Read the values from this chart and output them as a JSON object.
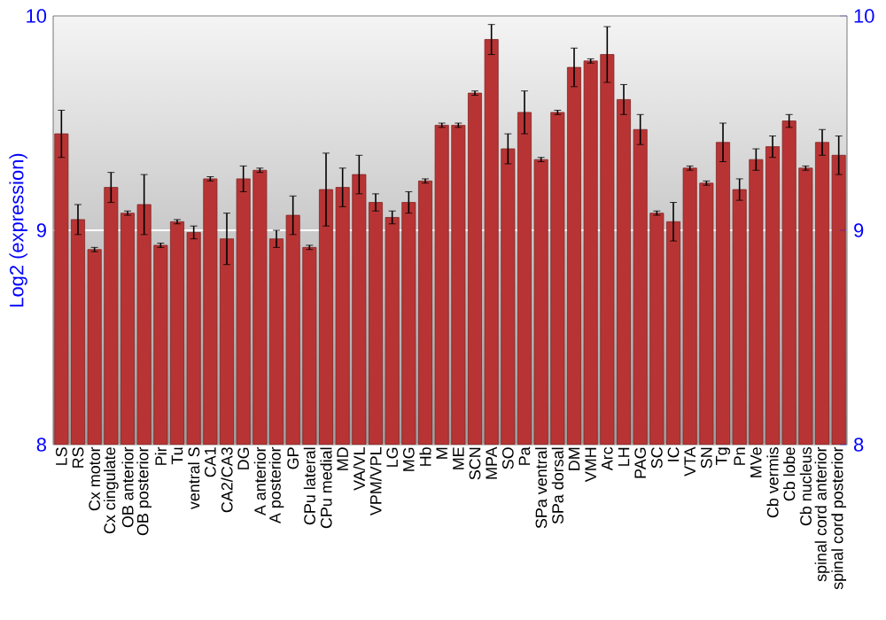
{
  "chart_data": {
    "type": "bar",
    "ylabel": "Log2 (expression)",
    "categories": [
      "LS",
      "RS",
      "Cx motor",
      "Cx cingulate",
      "OB anterior",
      "OB posterior",
      "Pir",
      "Tu",
      "ventral S",
      "CA1",
      "CA2/CA3",
      "DG",
      "A anterior",
      "A posterior",
      "GP",
      "CPu lateral",
      "CPu medial",
      "MD",
      "VA/VL",
      "VPM/VPL",
      "LG",
      "MG",
      "Hb",
      "M",
      "ME",
      "SCN",
      "MPA",
      "SO",
      "Pa",
      "SPa ventral",
      "SPa dorsal",
      "DM",
      "VMH",
      "Arc",
      "LH",
      "PAG",
      "SC",
      "IC",
      "VTA",
      "SN",
      "Tg",
      "Pn",
      "MVe",
      "Cb vermis",
      "Cb lobe",
      "Cb nucleus",
      "spinal cord anterior",
      "spinal cord posterior"
    ],
    "values": [
      9.45,
      9.05,
      8.91,
      9.2,
      9.08,
      9.12,
      8.93,
      9.04,
      8.99,
      9.24,
      8.96,
      9.24,
      9.28,
      8.96,
      9.07,
      8.92,
      9.19,
      9.2,
      9.26,
      9.13,
      9.06,
      9.13,
      9.23,
      9.49,
      9.49,
      9.64,
      9.89,
      9.38,
      9.55,
      9.33,
      9.55,
      9.76,
      9.79,
      9.82,
      9.61,
      9.47,
      9.08,
      9.04,
      9.29,
      9.22,
      9.41,
      9.19,
      9.33,
      9.39,
      9.51,
      9.29,
      9.41,
      9.35
    ],
    "errors": [
      0.11,
      0.07,
      0.01,
      0.07,
      0.01,
      0.14,
      0.01,
      0.01,
      0.03,
      0.01,
      0.12,
      0.06,
      0.01,
      0.04,
      0.09,
      0.01,
      0.17,
      0.09,
      0.09,
      0.04,
      0.03,
      0.05,
      0.01,
      0.01,
      0.01,
      0.01,
      0.07,
      0.07,
      0.1,
      0.01,
      0.01,
      0.09,
      0.01,
      0.13,
      0.07,
      0.07,
      0.01,
      0.09,
      0.01,
      0.01,
      0.09,
      0.05,
      0.05,
      0.05,
      0.03,
      0.01,
      0.06,
      0.09
    ],
    "color": "#b83434",
    "ylim": [
      8,
      10
    ],
    "yticks": [
      8,
      9,
      10
    ],
    "y2lim": [
      8,
      10
    ],
    "y2ticks": [
      8,
      9,
      10
    ],
    "grid": "y"
  }
}
